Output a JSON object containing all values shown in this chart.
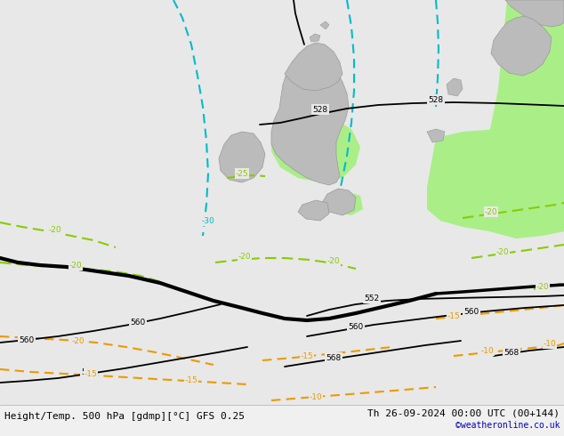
{
  "title_left": "Height/Temp. 500 hPa [gdmp][°C] GFS 0.25",
  "title_right": "Th 26-09-2024 00:00 UTC (00+144)",
  "watermark": "©weatheronline.co.uk",
  "bg_color": "#e8e8e8",
  "land_color": "#bbbbbb",
  "green_fill": "#aaee88",
  "z500_color": "#000000",
  "temp_green_color": "#88cc00",
  "temp_orange_color": "#ee9900",
  "cyan_color": "#00bbcc",
  "figw": 6.34,
  "figh": 4.9,
  "dpi": 100
}
